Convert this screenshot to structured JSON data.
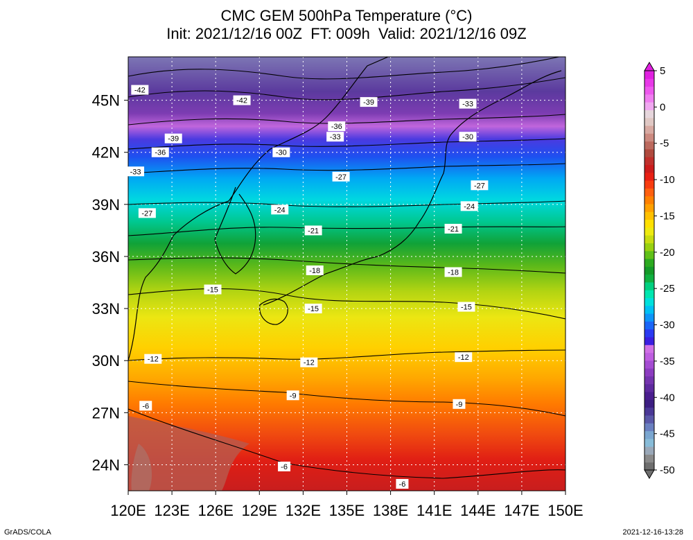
{
  "title": {
    "line1": "CMC GEM 500hPa Temperature (°C)",
    "line2": "Init: 2021/12/16 00Z  FT: 009h  Valid: 2021/12/16 09Z"
  },
  "map": {
    "lon_labels": [
      "120E",
      "123E",
      "126E",
      "129E",
      "132E",
      "135E",
      "138E",
      "141E",
      "144E",
      "147E",
      "150E"
    ],
    "lat_labels": [
      "45N",
      "42N",
      "39N",
      "36N",
      "33N",
      "30N",
      "27N",
      "24N"
    ],
    "lon_values": [
      120,
      123,
      126,
      129,
      132,
      135,
      138,
      141,
      144,
      147,
      150
    ],
    "lat_values": [
      45,
      42,
      39,
      36,
      33,
      30,
      27,
      24
    ],
    "lon_range": [
      120,
      150
    ],
    "lat_range": [
      22.5,
      47.5
    ],
    "isotherm_labels": [
      {
        "text": "-42",
        "lon": 120.8,
        "lat": 45.6
      },
      {
        "text": "-42",
        "lon": 127.8,
        "lat": 45.0
      },
      {
        "text": "-39",
        "lon": 136.5,
        "lat": 44.9
      },
      {
        "text": "-33",
        "lon": 143.3,
        "lat": 44.8
      },
      {
        "text": "-36",
        "lon": 134.3,
        "lat": 43.5
      },
      {
        "text": "-33",
        "lon": 134.2,
        "lat": 42.9
      },
      {
        "text": "-39",
        "lon": 123.1,
        "lat": 42.8
      },
      {
        "text": "-36",
        "lon": 122.2,
        "lat": 42.0
      },
      {
        "text": "-30",
        "lon": 130.5,
        "lat": 42.0
      },
      {
        "text": "-30",
        "lon": 143.3,
        "lat": 42.9
      },
      {
        "text": "-33",
        "lon": 120.5,
        "lat": 40.9
      },
      {
        "text": "-27",
        "lon": 134.6,
        "lat": 40.6
      },
      {
        "text": "-27",
        "lon": 144.1,
        "lat": 40.1
      },
      {
        "text": "-27",
        "lon": 121.3,
        "lat": 38.5
      },
      {
        "text": "-24",
        "lon": 130.4,
        "lat": 38.7
      },
      {
        "text": "-24",
        "lon": 143.4,
        "lat": 38.9
      },
      {
        "text": "-21",
        "lon": 132.7,
        "lat": 37.5
      },
      {
        "text": "-21",
        "lon": 142.3,
        "lat": 37.6
      },
      {
        "text": "-18",
        "lon": 132.8,
        "lat": 35.2
      },
      {
        "text": "-18",
        "lon": 142.3,
        "lat": 35.1
      },
      {
        "text": "-15",
        "lon": 125.8,
        "lat": 34.1
      },
      {
        "text": "-15",
        "lon": 132.7,
        "lat": 33.0
      },
      {
        "text": "-15",
        "lon": 143.2,
        "lat": 33.1
      },
      {
        "text": "-12",
        "lon": 121.7,
        "lat": 30.1
      },
      {
        "text": "-12",
        "lon": 132.4,
        "lat": 29.9
      },
      {
        "text": "-12",
        "lon": 143.0,
        "lat": 30.2
      },
      {
        "text": "-9",
        "lon": 131.3,
        "lat": 28.0
      },
      {
        "text": "-9",
        "lon": 142.7,
        "lat": 27.5
      },
      {
        "text": "-6",
        "lon": 121.2,
        "lat": 27.4
      },
      {
        "text": "-6",
        "lon": 130.7,
        "lat": 23.9
      },
      {
        "text": "-6",
        "lon": 138.8,
        "lat": 22.9
      }
    ]
  },
  "colorbar": {
    "labels": [
      "5",
      "0",
      "-5",
      "-10",
      "-15",
      "-20",
      "-25",
      "-30",
      "-35",
      "-40",
      "-45",
      "-50"
    ],
    "values": [
      5,
      0,
      -5,
      -10,
      -15,
      -20,
      -25,
      -30,
      -35,
      -40,
      -45,
      -50
    ],
    "colors": [
      "#6e6e6e",
      "#8a8a8a",
      "#9aa8b8",
      "#88bcd8",
      "#7aa6d0",
      "#6a80c0",
      "#5a58a8",
      "#4a3896",
      "#3c1e82",
      "#4a1e8e",
      "#5e2a9e",
      "#7434ae",
      "#8c3cc0",
      "#a44cd2",
      "#be5ee0",
      "#d070e6",
      "#3a1ee0",
      "#2a3af2",
      "#1a66f8",
      "#0e94f8",
      "#00c0f4",
      "#00e0dc",
      "#00e6b0",
      "#00d080",
      "#10b040",
      "#149a28",
      "#2caa20",
      "#60c018",
      "#98d010",
      "#c8dc10",
      "#eeea10",
      "#ffe000",
      "#ffc000",
      "#ffa000",
      "#ff8000",
      "#ff6010",
      "#f83c10",
      "#e82014",
      "#cc1c1c",
      "#c0302c",
      "#b04a3e",
      "#bc6a5e",
      "#cc8a80",
      "#d8aaa2",
      "#e0c8c4",
      "#e6d6dc",
      "#f0a8f0",
      "#f07ef0",
      "#ee58ee",
      "#e838e8",
      "#e020e0"
    ],
    "low": -50,
    "high": 5
  },
  "footer": {
    "left": "GrADS/COLA",
    "right": "2021-12-16-13:28"
  }
}
